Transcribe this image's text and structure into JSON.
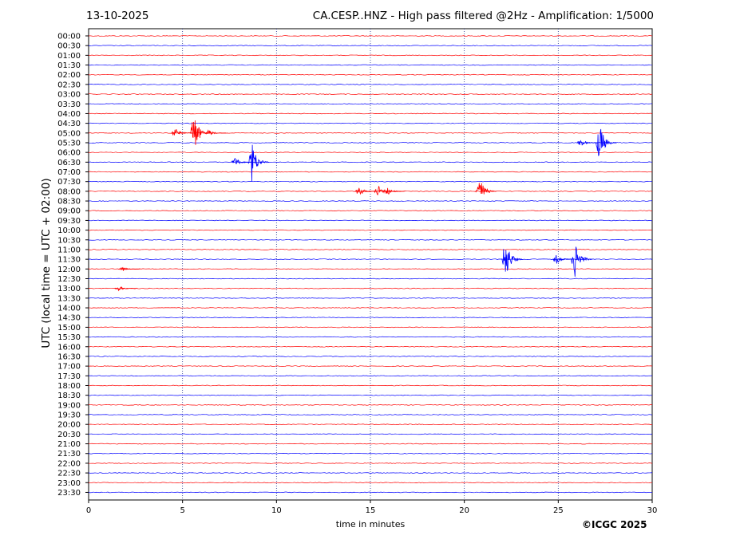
{
  "header": {
    "date": "13-10-2025",
    "title": "CA.CESP..HNZ - High pass filtered @2Hz - Amplification: 1/5000"
  },
  "footer": {
    "copyright": "©ICGC 2025"
  },
  "chart_data": {
    "type": "line",
    "subtype": "helicorder",
    "xlabel": "time in minutes",
    "ylabel": "UTC (local time = UTC + 02:00)",
    "xlim": [
      0,
      30
    ],
    "xticks": [
      0,
      5,
      10,
      15,
      20,
      25,
      30
    ],
    "vertical_gridlines_at": [
      5,
      10,
      15,
      20,
      25
    ],
    "grid": "vertical dotted",
    "trace_colors": [
      "#ff0000",
      "#0000ff"
    ],
    "rows": [
      "00:00",
      "00:30",
      "01:00",
      "01:30",
      "02:00",
      "02:30",
      "03:00",
      "03:30",
      "04:00",
      "04:30",
      "05:00",
      "05:30",
      "06:00",
      "06:30",
      "07:00",
      "07:30",
      "08:00",
      "08:30",
      "09:00",
      "09:30",
      "10:00",
      "10:30",
      "11:00",
      "11:30",
      "12:00",
      "12:30",
      "13:00",
      "13:30",
      "14:00",
      "14:30",
      "15:00",
      "15:30",
      "16:00",
      "16:30",
      "17:00",
      "17:30",
      "18:00",
      "18:30",
      "19:00",
      "19:30",
      "20:00",
      "20:30",
      "21:00",
      "21:30",
      "22:00",
      "22:30",
      "23:00",
      "23:30"
    ],
    "events": [
      {
        "row": "05:00",
        "minute": 4.6,
        "amplitude": 0.35
      },
      {
        "row": "05:00",
        "minute": 5.6,
        "amplitude": 1.4
      },
      {
        "row": "05:00",
        "minute": 6.4,
        "amplitude": 0.2
      },
      {
        "row": "05:30",
        "minute": 26.2,
        "amplitude": 0.25
      },
      {
        "row": "05:30",
        "minute": 27.2,
        "amplitude": 1.3
      },
      {
        "row": "06:30",
        "minute": 7.8,
        "amplitude": 0.3
      },
      {
        "row": "06:30",
        "minute": 8.7,
        "amplitude": 1.3
      },
      {
        "row": "08:00",
        "minute": 14.4,
        "amplitude": 0.3
      },
      {
        "row": "08:00",
        "minute": 15.4,
        "amplitude": 0.4
      },
      {
        "row": "08:00",
        "minute": 15.9,
        "amplitude": 0.25
      },
      {
        "row": "08:00",
        "minute": 20.8,
        "amplitude": 1.0
      },
      {
        "row": "11:30",
        "minute": 22.2,
        "amplitude": 1.4
      },
      {
        "row": "11:30",
        "minute": 24.9,
        "amplitude": 0.3
      },
      {
        "row": "11:30",
        "minute": 25.9,
        "amplitude": 1.3
      },
      {
        "row": "12:00",
        "minute": 1.8,
        "amplitude": 0.15
      },
      {
        "row": "13:00",
        "minute": 1.6,
        "amplitude": 0.15
      }
    ]
  }
}
